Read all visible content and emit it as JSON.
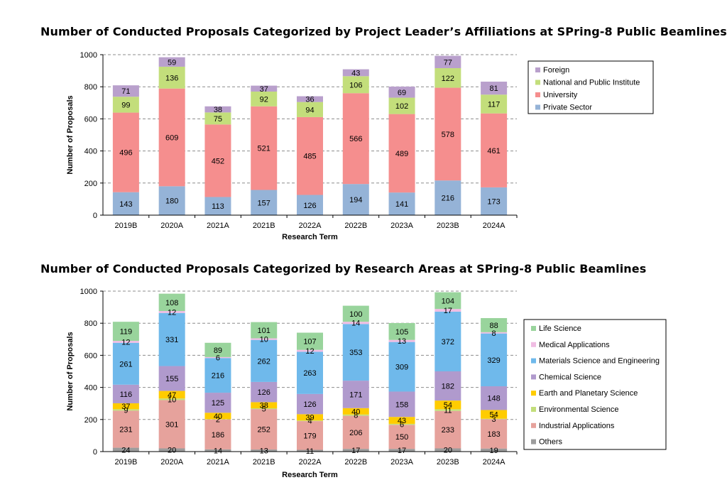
{
  "chart_data": [
    {
      "type": "bar",
      "stacked": true,
      "title": "Number of Conducted Proposals Categorized by Project Leader’s Affiliations at SPring-8 Public Beamlines",
      "xlabel": "Research Term",
      "ylabel": "Number of Proposals",
      "ylim": [
        0,
        1000
      ],
      "yticks": [
        0,
        200,
        400,
        600,
        800,
        1000
      ],
      "grid": "horizontal dashed",
      "legend_position": "right",
      "categories": [
        "2019B",
        "2020A",
        "2021A",
        "2021B",
        "2022A",
        "2022B",
        "2023A",
        "2023B",
        "2024A"
      ],
      "series": [
        {
          "name": "Private Sector",
          "color": "#95b3d7",
          "values": [
            143,
            180,
            113,
            157,
            126,
            194,
            141,
            216,
            173
          ]
        },
        {
          "name": "University",
          "color": "#f58e8e",
          "values": [
            496,
            609,
            452,
            521,
            485,
            566,
            489,
            578,
            461
          ]
        },
        {
          "name": "National and Public Institute",
          "color": "#c3de7b",
          "values": [
            99,
            136,
            75,
            92,
            94,
            106,
            102,
            122,
            117
          ]
        },
        {
          "name": "Foreign",
          "color": "#b9a0cc",
          "values": [
            71,
            59,
            38,
            37,
            36,
            43,
            69,
            77,
            81
          ]
        }
      ],
      "legend_order": [
        "Foreign",
        "National and Public Institute",
        "University",
        "Private Sector"
      ]
    },
    {
      "type": "bar",
      "stacked": true,
      "title": "Number of Conducted Proposals Categorized by Research Areas at SPring-8 Public Beamlines",
      "xlabel": "Research Term",
      "ylabel": "Number of Proposals",
      "ylim": [
        0,
        1000
      ],
      "yticks": [
        0,
        200,
        400,
        600,
        800,
        1000
      ],
      "grid": "horizontal dashed",
      "legend_position": "right",
      "categories": [
        "2019B",
        "2020A",
        "2021A",
        "2021B",
        "2022A",
        "2022B",
        "2023A",
        "2023B",
        "2024A"
      ],
      "series": [
        {
          "name": "Others",
          "color": "#9c9c9c",
          "values": [
            24,
            20,
            14,
            13,
            11,
            17,
            17,
            20,
            19
          ]
        },
        {
          "name": "Industrial Applications",
          "color": "#e6a29c",
          "values": [
            231,
            301,
            186,
            252,
            179,
            206,
            150,
            233,
            183
          ]
        },
        {
          "name": "Environmental Science",
          "color": "#c3de7b",
          "values": [
            9,
            10,
            2,
            5,
            4,
            8,
            6,
            11,
            3
          ]
        },
        {
          "name": "Earth and Planetary Science",
          "color": "#ffcc00",
          "values": [
            37,
            47,
            40,
            38,
            39,
            40,
            43,
            54,
            54
          ]
        },
        {
          "name": "Chemical Science",
          "color": "#b09acd",
          "values": [
            116,
            155,
            125,
            126,
            126,
            171,
            158,
            182,
            148
          ]
        },
        {
          "name": "Materials Science and Engineering",
          "color": "#6fb9eb",
          "values": [
            261,
            331,
            216,
            262,
            263,
            353,
            309,
            372,
            329
          ]
        },
        {
          "name": "Medical Applications",
          "color": "#f0bde3",
          "values": [
            12,
            12,
            6,
            10,
            12,
            14,
            13,
            17,
            8
          ]
        },
        {
          "name": "Life Science",
          "color": "#99d49c",
          "values": [
            119,
            108,
            89,
            101,
            107,
            100,
            105,
            104,
            88
          ]
        }
      ],
      "legend_order": [
        "Life Science",
        "Medical Applications",
        "Materials Science and Engineering",
        "Chemical Science",
        "Earth and Planetary Science",
        "Environmental Science",
        "Industrial Applications",
        "Others"
      ]
    }
  ]
}
